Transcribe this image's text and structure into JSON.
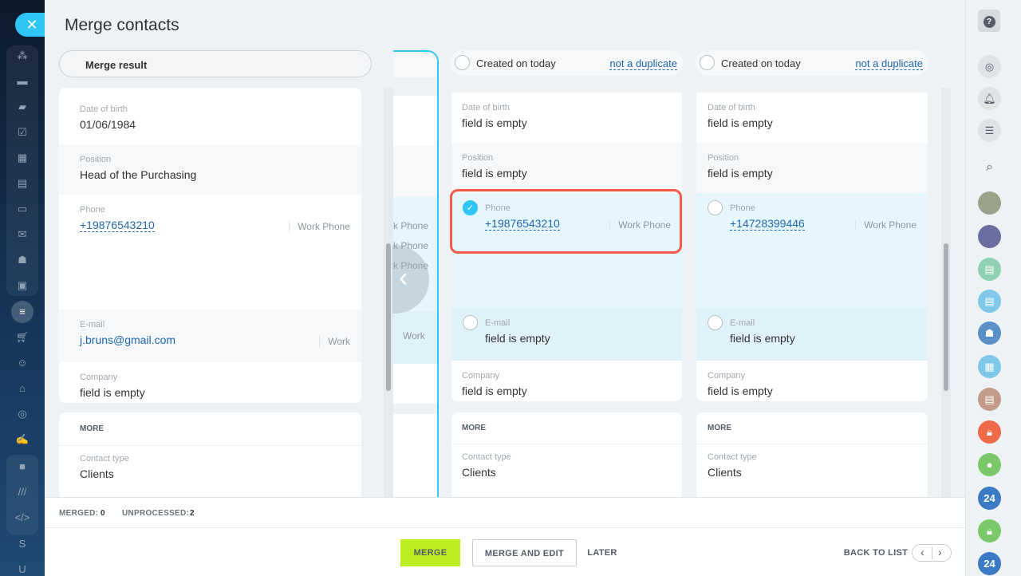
{
  "sidebar": {
    "close_icon": "✕",
    "items": [
      "crm-icon",
      "feed-icon",
      "chat-icon",
      "tasks-icon",
      "calendar-icon",
      "docs-icon",
      "drive-icon",
      "mail-icon",
      "groups-icon",
      "contacts-icon",
      "funnel-icon",
      "cart-icon",
      "robot-icon",
      "store-icon",
      "target-icon",
      "sign-icon",
      "box-icon",
      "marketplace-icon",
      "dev-icon"
    ],
    "letters": [
      "S",
      "U"
    ]
  },
  "title": "Merge contacts",
  "merge_result": {
    "label": "Merge result",
    "rows": [
      {
        "label": "Date of birth",
        "value": "01/06/1984"
      },
      {
        "label": "Position",
        "value": "Head of the Purchasing"
      },
      {
        "label": "Phone",
        "value": "+19876543210",
        "tag": "Work Phone"
      },
      {
        "label": "E-mail",
        "value": "j.bruns@gmail.com",
        "tag": "Work"
      },
      {
        "label": "Company",
        "value": "field is empty"
      }
    ],
    "more": "MORE",
    "contact_type_label": "Contact type",
    "contact_type": "Clients"
  },
  "partial_column": {
    "phone_tags": [
      "k Phone",
      "k Phone",
      "k Phone"
    ],
    "email_tag": "Work"
  },
  "duplicates": [
    {
      "created": "Created on today",
      "not_dup": "not a duplicate",
      "dob": "field is empty",
      "position": "field is empty",
      "phone": "+19876543210",
      "phone_tag": "Work Phone",
      "phone_selected": true,
      "email": "field is empty",
      "company": "field is empty",
      "more": "MORE",
      "contact_type": "Clients"
    },
    {
      "created": "Created on today",
      "not_dup": "not a duplicate",
      "dob": "field is empty",
      "position": "field is empty",
      "phone": "+14728399446",
      "phone_tag": "Work Phone",
      "phone_selected": false,
      "email": "field is empty",
      "company": "field is empty",
      "more": "MORE",
      "contact_type": "Clients"
    }
  ],
  "labels": {
    "dob": "Date of birth",
    "position": "Position",
    "phone": "Phone",
    "email": "E-mail",
    "company": "Company",
    "contact_type": "Contact type"
  },
  "footer": {
    "merged_label": "MERGED:",
    "merged": "0",
    "unprocessed_label": "UNPROCESSED:",
    "unprocessed": "2",
    "merge": "MERGE",
    "merge_edit": "MERGE AND EDIT",
    "later": "LATER",
    "back": "BACK TO LIST"
  },
  "right": {
    "help": "?",
    "badge": "24"
  },
  "colors": {
    "accent": "#2fc6f6",
    "merge": "#bbed21",
    "highlight": "#f25a4a",
    "link": "#2067b0"
  }
}
